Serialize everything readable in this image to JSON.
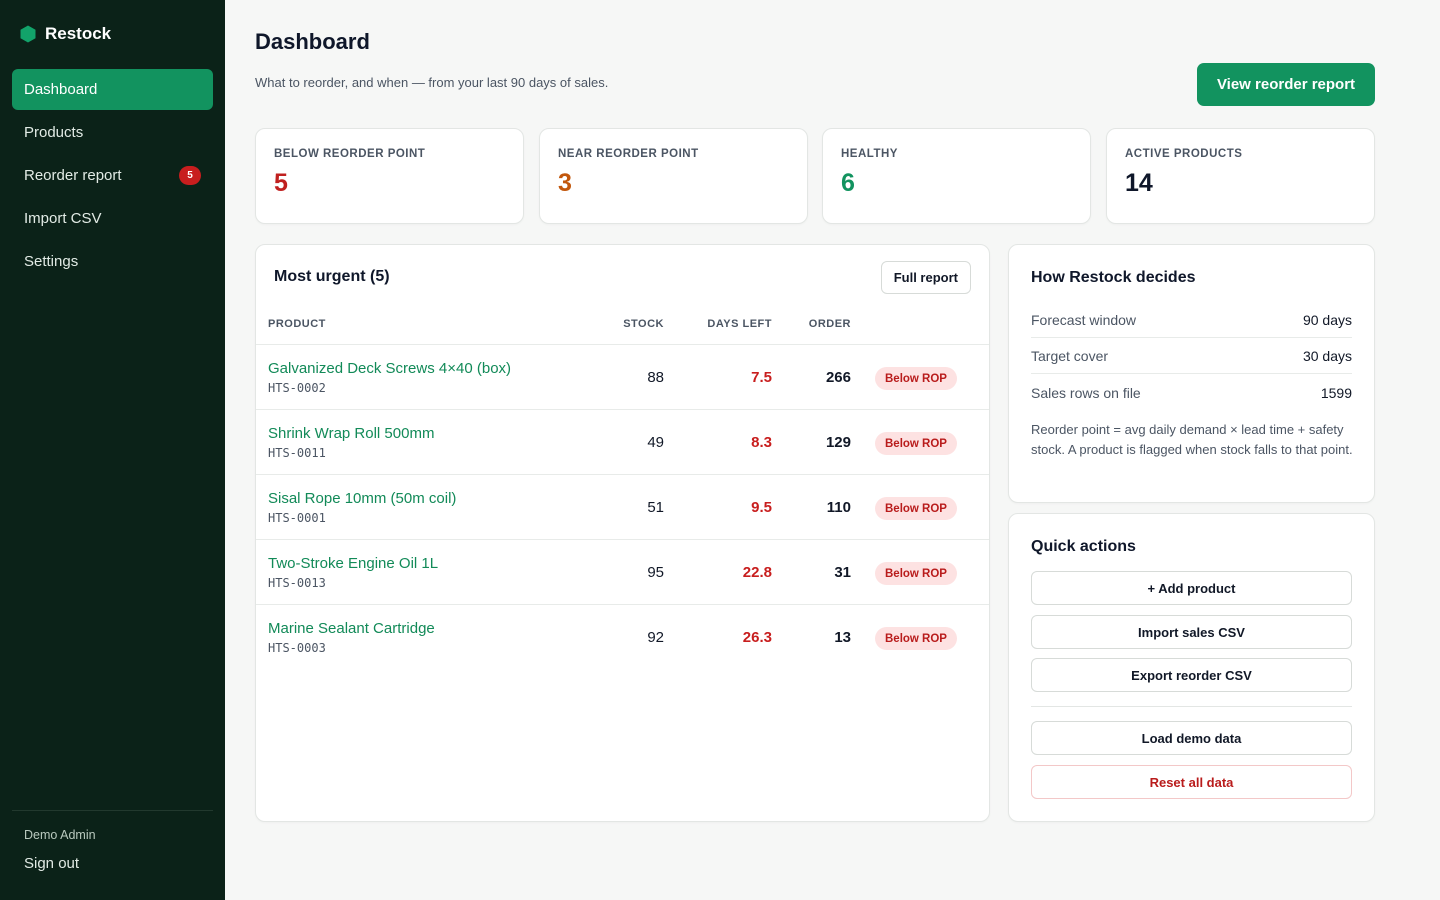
{
  "app": {
    "name": "Restock"
  },
  "sidebar": {
    "items": [
      {
        "label": "Dashboard",
        "active": true
      },
      {
        "label": "Products"
      },
      {
        "label": "Reorder report",
        "badge": "5"
      },
      {
        "label": "Import CSV"
      },
      {
        "label": "Settings"
      }
    ],
    "user": "Demo Admin",
    "signout": "Sign out"
  },
  "header": {
    "title": "Dashboard",
    "subtitle": "What to reorder, and when — from your last 90 days of sales.",
    "primary_button": "View reorder report"
  },
  "stats": [
    {
      "label": "BELOW REORDER POINT",
      "value": "5",
      "color": "#c0201f"
    },
    {
      "label": "NEAR REORDER POINT",
      "value": "3",
      "color": "#c2570c"
    },
    {
      "label": "HEALTHY",
      "value": "6",
      "color": "#12935f"
    },
    {
      "label": "ACTIVE PRODUCTS",
      "value": "14",
      "color": "#0f172a"
    }
  ],
  "urgent": {
    "title": "Most urgent (5)",
    "button": "Full report",
    "columns": {
      "product": "PRODUCT",
      "stock": "STOCK",
      "days_left": "DAYS LEFT",
      "order": "ORDER"
    },
    "rows": [
      {
        "name": "Galvanized Deck Screws 4×40 (box)",
        "sku": "HTS-0002",
        "stock": "88",
        "days_left": "7.5",
        "order": "266",
        "status": "Below ROP"
      },
      {
        "name": "Shrink Wrap Roll 500mm",
        "sku": "HTS-0011",
        "stock": "49",
        "days_left": "8.3",
        "order": "129",
        "status": "Below ROP"
      },
      {
        "name": "Sisal Rope 10mm (50m coil)",
        "sku": "HTS-0001",
        "stock": "51",
        "days_left": "9.5",
        "order": "110",
        "status": "Below ROP"
      },
      {
        "name": "Two-Stroke Engine Oil 1L",
        "sku": "HTS-0013",
        "stock": "95",
        "days_left": "22.8",
        "order": "31",
        "status": "Below ROP"
      },
      {
        "name": "Marine Sealant Cartridge",
        "sku": "HTS-0003",
        "stock": "92",
        "days_left": "26.3",
        "order": "13",
        "status": "Below ROP"
      }
    ]
  },
  "decides": {
    "title": "How Restock decides",
    "rows": [
      {
        "key": "Forecast window",
        "value": "90 days"
      },
      {
        "key": "Target cover",
        "value": "30 days"
      },
      {
        "key": "Sales rows on file",
        "value": "1599"
      }
    ],
    "note": "Reorder point = avg daily demand × lead time + safety stock. A product is flagged when stock falls to that point."
  },
  "quick": {
    "title": "Quick actions",
    "add_product": "+ Add product",
    "import_sales": "Import sales CSV",
    "export_reorder": "Export reorder CSV",
    "load_demo": "Load demo data",
    "reset": "Reset all data"
  },
  "colors": {
    "accent": "#12935f",
    "sidebar_bg": "#0b2218",
    "danger": "#c81e1e"
  },
  "icons": {
    "logo": "hexagon-logo-icon"
  }
}
